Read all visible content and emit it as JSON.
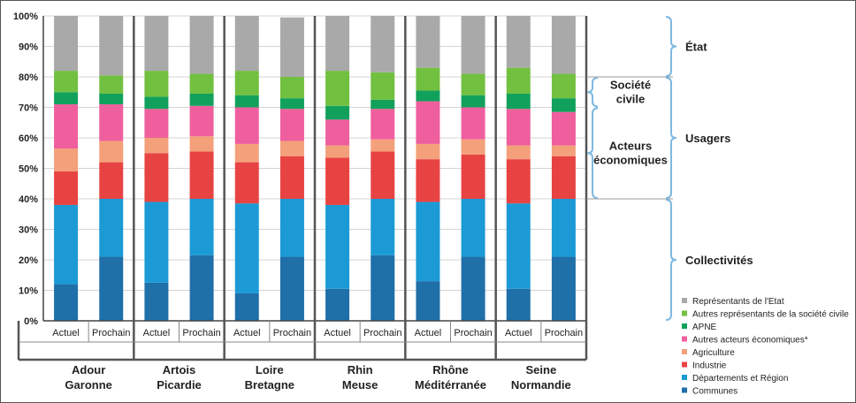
{
  "chart_data": {
    "type": "bar",
    "stacked": true,
    "ylim": [
      0,
      100
    ],
    "y_ticks": [
      "0%",
      "10%",
      "20%",
      "30%",
      "40%",
      "50%",
      "60%",
      "70%",
      "80%",
      "90%",
      "100%"
    ],
    "bar_labels": [
      "Actuel",
      "Prochain"
    ],
    "groups": [
      {
        "line1": "Adour",
        "line2": "Garonne"
      },
      {
        "line1": "Artois",
        "line2": "Picardie"
      },
      {
        "line1": "Loire",
        "line2": "Bretagne"
      },
      {
        "line1": "Rhin",
        "line2": "Meuse"
      },
      {
        "line1": "Rhône",
        "line2": "Méditérranée"
      },
      {
        "line1": "Seine",
        "line2": "Normandie"
      }
    ],
    "categories": [
      "Adour Garonne Actuel",
      "Adour Garonne Prochain",
      "Artois Picardie Actuel",
      "Artois Picardie Prochain",
      "Loire Bretagne Actuel",
      "Loire Bretagne Prochain",
      "Rhin Meuse Actuel",
      "Rhin Meuse Prochain",
      "Rhône Méditérranée Actuel",
      "Rhône Méditérranée Prochain",
      "Seine Normandie Actuel",
      "Seine Normandie Prochain"
    ],
    "series": [
      {
        "name": "Communes",
        "color": "#1f6fa8",
        "values": [
          12,
          21,
          12.5,
          21.5,
          9,
          21,
          10.5,
          21.5,
          13,
          21,
          10.5,
          21
        ]
      },
      {
        "name": "Départements et Région",
        "color": "#1b9ad6",
        "values": [
          26,
          19,
          26.5,
          18.5,
          29.5,
          19,
          27.5,
          18.5,
          26,
          19,
          28,
          19
        ]
      },
      {
        "name": "Industrie",
        "color": "#e84343",
        "values": [
          11,
          12,
          16,
          15.5,
          13.5,
          14,
          15.5,
          15.5,
          14,
          14.5,
          14.5,
          14
        ]
      },
      {
        "name": "Agriculture",
        "color": "#f4a07a",
        "values": [
          7.5,
          7,
          5,
          5,
          6,
          5,
          4,
          4,
          5,
          5,
          4.5,
          3.5
        ]
      },
      {
        "name": "Autres acteurs économiques*",
        "color": "#ef5f9d",
        "values": [
          14.5,
          12,
          9.5,
          10,
          12,
          10.5,
          8.5,
          10,
          14,
          10.5,
          12,
          11
        ]
      },
      {
        "name": "APNE",
        "color": "#12a15c",
        "values": [
          4,
          3.5,
          4,
          4,
          4,
          3.5,
          4.5,
          3,
          3.5,
          4,
          5,
          4.5
        ]
      },
      {
        "name": "Autres représentants de la société civile",
        "color": "#72c040",
        "values": [
          7,
          6,
          8.5,
          6.5,
          8,
          7,
          11.5,
          9,
          7.5,
          7,
          8.5,
          8
        ]
      },
      {
        "name": "Représentants de l'Etat",
        "color": "#a9a9a9",
        "values": [
          18,
          19.5,
          18,
          19,
          18,
          19.5,
          18,
          18.5,
          17,
          19,
          17,
          19
        ]
      }
    ],
    "legend_order": [
      "Représentants de l'Etat",
      "Autres représentants de la société civile",
      "APNE",
      "Autres acteurs économiques*",
      "Agriculture",
      "Industrie",
      "Départements et Région",
      "Communes"
    ],
    "annotations": [
      {
        "text": "État",
        "from": 80,
        "to": 100,
        "level": "outer"
      },
      {
        "text": "Usagers",
        "from": 40,
        "to": 80,
        "level": "outer"
      },
      {
        "text": "Collectivités",
        "from": 0,
        "to": 40,
        "level": "outer"
      },
      {
        "text": "Société civile",
        "from": 70,
        "to": 80,
        "level": "inner"
      },
      {
        "text": "Acteurs économiques",
        "from": 40,
        "to": 70,
        "level": "inner"
      }
    ],
    "legend_position": "bottom-right"
  }
}
